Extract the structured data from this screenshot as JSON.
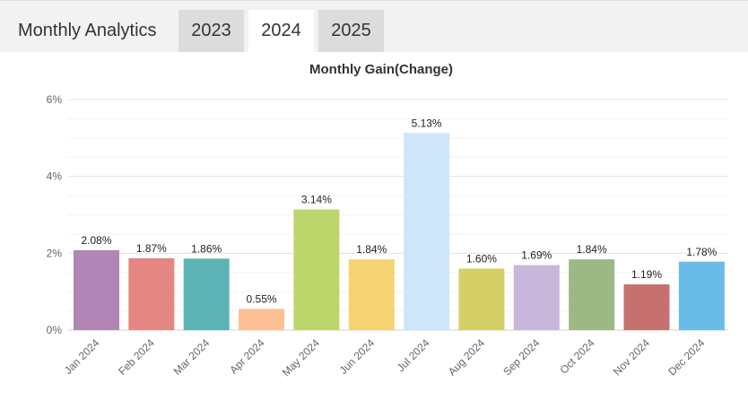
{
  "header": {
    "title": "Monthly Analytics",
    "tabs": [
      {
        "label": "2023",
        "active": false
      },
      {
        "label": "2024",
        "active": true
      },
      {
        "label": "2025",
        "active": false
      }
    ]
  },
  "chart_data": {
    "type": "bar",
    "title": "Monthly Gain(Change)",
    "xlabel": "",
    "ylabel": "",
    "ylim": [
      0,
      6
    ],
    "yticks": [
      "0%",
      "2%",
      "4%",
      "6%"
    ],
    "grid": true,
    "categories": [
      "Jan 2024",
      "Feb 2024",
      "Mar 2024",
      "Apr 2024",
      "May 2024",
      "Jun 2024",
      "Jul 2024",
      "Aug 2024",
      "Sep 2024",
      "Oct 2024",
      "Nov 2024",
      "Dec 2024"
    ],
    "values": [
      2.08,
      1.87,
      1.86,
      0.55,
      3.14,
      1.84,
      5.13,
      1.6,
      1.69,
      1.84,
      1.19,
      1.78
    ],
    "data_labels": [
      "2.08%",
      "1.87%",
      "1.86%",
      "0.55%",
      "3.14%",
      "1.84%",
      "5.13%",
      "1.60%",
      "1.69%",
      "1.84%",
      "1.19%",
      "1.78%"
    ],
    "colors": [
      "#b185b5",
      "#e58683",
      "#5cb4b4",
      "#fdc095",
      "#bdd66b",
      "#f5d372",
      "#cfe5f9",
      "#d4ce67",
      "#c8b7da",
      "#9cb985",
      "#c67170",
      "#6abce8"
    ]
  }
}
